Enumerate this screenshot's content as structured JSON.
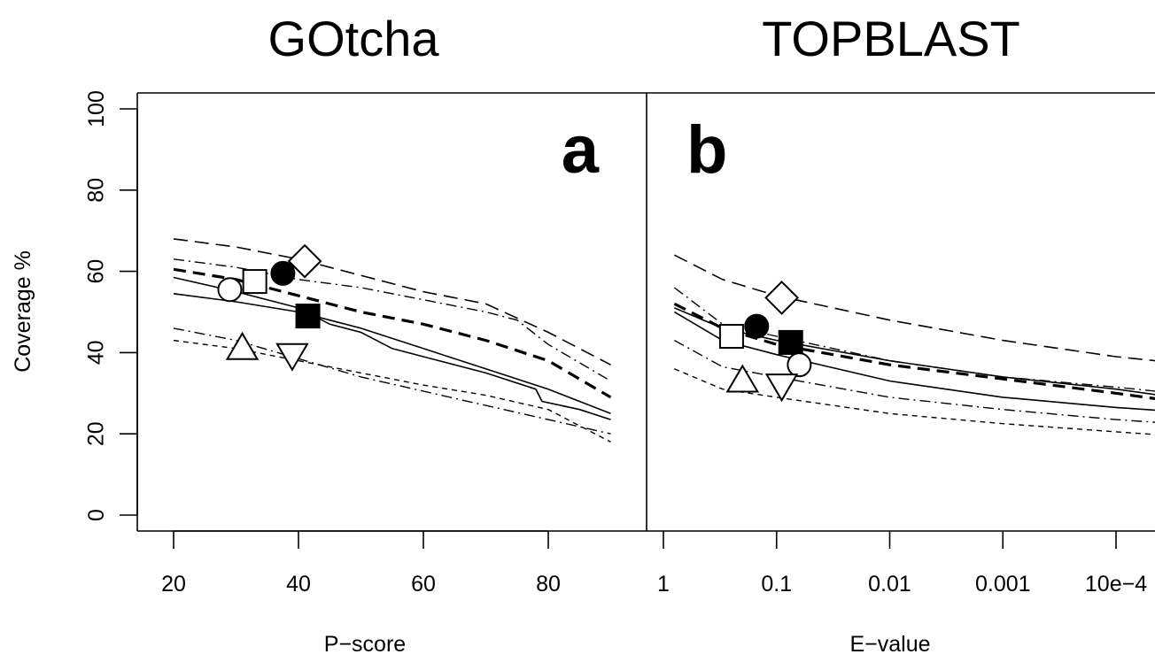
{
  "chart_data": [
    {
      "type": "line",
      "panel": "a",
      "title": "GOtcha",
      "xlabel": "P−score",
      "ylabel": "Coverage %",
      "xlim": [
        20,
        90
      ],
      "ylim": [
        0,
        100
      ],
      "x_ticks": [
        "20",
        "40",
        "60",
        "80"
      ],
      "y_ticks": [
        "0",
        "20",
        "40",
        "60",
        "80",
        "100"
      ],
      "x_scale": "linear",
      "grid": false,
      "series": [
        {
          "style": "long-dash",
          "x": [
            20,
            30,
            40,
            50,
            60,
            70,
            80,
            90
          ],
          "y": [
            68,
            66,
            63,
            59,
            55,
            52,
            45,
            37
          ]
        },
        {
          "style": "dash-dot",
          "x": [
            20,
            30,
            40,
            50,
            60,
            70,
            75,
            80,
            90
          ],
          "y": [
            63,
            61,
            58,
            56,
            53,
            50,
            48,
            42,
            33
          ]
        },
        {
          "style": "thick-dash",
          "x": [
            20,
            30,
            40,
            50,
            60,
            70,
            80,
            90
          ],
          "y": [
            60.5,
            58,
            54,
            50,
            47,
            43,
            38,
            29
          ]
        },
        {
          "style": "solid-upper",
          "x": [
            20,
            30,
            40,
            45,
            50,
            55,
            60,
            70,
            78,
            79,
            85,
            90
          ],
          "y": [
            58.5,
            55,
            51,
            47,
            45,
            41,
            39,
            35,
            31,
            28,
            26,
            23.5
          ]
        },
        {
          "style": "solid-lower",
          "x": [
            20,
            30,
            40,
            50,
            60,
            70,
            80,
            90
          ],
          "y": [
            54.5,
            52.5,
            50,
            46,
            41,
            36,
            31,
            25
          ]
        },
        {
          "style": "dash-dot-lower",
          "x": [
            20,
            30,
            40,
            50,
            60,
            70,
            80,
            90
          ],
          "y": [
            46,
            43,
            38.5,
            34,
            30.5,
            27,
            23.5,
            20
          ]
        },
        {
          "style": "short-dash",
          "x": [
            20,
            30,
            40,
            50,
            60,
            70,
            80,
            90
          ],
          "y": [
            43,
            41,
            38,
            35,
            32,
            29.5,
            26,
            18
          ]
        }
      ],
      "points": [
        {
          "marker": "open-circle",
          "x": 29,
          "y": 55.5
        },
        {
          "marker": "open-square",
          "x": 33,
          "y": 57.5
        },
        {
          "marker": "filled-circle",
          "x": 37.5,
          "y": 59.5
        },
        {
          "marker": "open-diamond",
          "x": 41,
          "y": 62.5
        },
        {
          "marker": "filled-square",
          "x": 41.5,
          "y": 49
        },
        {
          "marker": "open-triangle-up",
          "x": 31,
          "y": 41
        },
        {
          "marker": "open-triangle-down",
          "x": 39,
          "y": 39.5
        }
      ]
    },
    {
      "type": "line",
      "panel": "b",
      "title": "TOPBLAST",
      "xlabel": "E−value",
      "ylabel": "",
      "xlim": [
        1,
        0.0001
      ],
      "ylim": [
        0,
        100
      ],
      "x_ticks": [
        "1",
        "0.1",
        "0.01",
        "0.001",
        "10e−4"
      ],
      "x_scale": "log",
      "grid": false,
      "series": [
        {
          "style": "long-dash",
          "x": [
            0.8,
            0.3,
            0.1,
            0.01,
            0.001,
            0.0001,
            3e-05
          ],
          "y": [
            64,
            58,
            54,
            48,
            43,
            39,
            37.5
          ]
        },
        {
          "style": "dash-dot",
          "x": [
            0.8,
            0.3,
            0.1,
            0.01,
            0.001,
            0.0001,
            3e-05
          ],
          "y": [
            56,
            47,
            44,
            38,
            34,
            31.5,
            30
          ]
        },
        {
          "style": "thick-dash",
          "x": [
            0.8,
            0.3,
            0.1,
            0.01,
            0.001,
            0.0001,
            3e-05
          ],
          "y": [
            52,
            46,
            42,
            37,
            33.5,
            30,
            28
          ]
        },
        {
          "style": "solid-upper",
          "x": [
            0.8,
            0.3,
            0.1,
            0.01,
            0.001,
            0.0001,
            3e-05
          ],
          "y": [
            51,
            46,
            43,
            38,
            34,
            31,
            29
          ]
        },
        {
          "style": "solid-lower",
          "x": [
            0.8,
            0.3,
            0.1,
            0.01,
            0.001,
            0.0001,
            3e-05
          ],
          "y": [
            50,
            43,
            39.5,
            33,
            29,
            26.5,
            25.5
          ]
        },
        {
          "style": "dash-dot-lower",
          "x": [
            0.8,
            0.3,
            0.1,
            0.01,
            0.001,
            0.0001,
            3e-05
          ],
          "y": [
            43,
            36.5,
            34,
            29,
            26,
            23.5,
            22.5
          ]
        },
        {
          "style": "short-dash",
          "x": [
            0.8,
            0.3,
            0.1,
            0.01,
            0.001,
            0.0001,
            3e-05
          ],
          "y": [
            36,
            31,
            29,
            25,
            22.5,
            20.5,
            19.5
          ]
        }
      ],
      "points": [
        {
          "marker": "open-square",
          "x": 0.25,
          "y": 44
        },
        {
          "marker": "filled-circle",
          "x": 0.15,
          "y": 46.5
        },
        {
          "marker": "open-diamond",
          "x": 0.09,
          "y": 53.5
        },
        {
          "marker": "filled-square",
          "x": 0.075,
          "y": 42.5
        },
        {
          "marker": "open-circle",
          "x": 0.063,
          "y": 37
        },
        {
          "marker": "open-triangle-up",
          "x": 0.2,
          "y": 33
        },
        {
          "marker": "open-triangle-down",
          "x": 0.09,
          "y": 32
        }
      ]
    }
  ],
  "panel_letters": [
    "a",
    "b"
  ]
}
